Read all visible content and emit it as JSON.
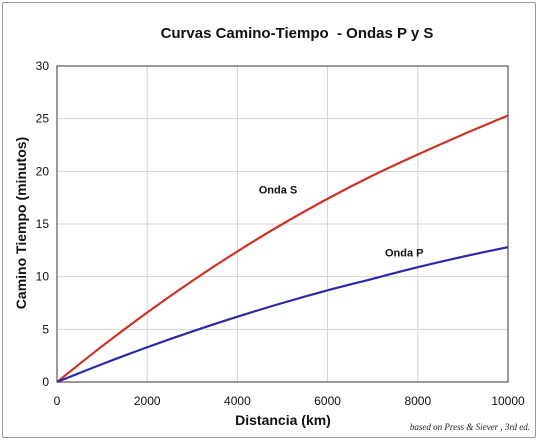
{
  "chart_data": {
    "type": "line",
    "title": "Curvas Camino-Tiempo  - Ondas P y S",
    "xlabel": "Distancia (km)",
    "ylabel": "Camino Tiempo (minutos)",
    "xlim": [
      0,
      10000
    ],
    "ylim": [
      0,
      30
    ],
    "xticks": [
      0,
      2000,
      4000,
      6000,
      8000,
      10000
    ],
    "yticks": [
      0,
      5,
      10,
      15,
      20,
      25,
      30
    ],
    "grid": true,
    "series": [
      {
        "name": "Onda S",
        "color": "#cc3322",
        "x": [
          0,
          1000,
          2000,
          3000,
          4000,
          5000,
          6000,
          7000,
          8000,
          9000,
          10000
        ],
        "values": [
          0,
          3.4,
          6.6,
          9.6,
          12.4,
          15.0,
          17.4,
          19.6,
          21.6,
          23.5,
          25.3
        ]
      },
      {
        "name": "Onda P",
        "color": "#2a2aa8",
        "x": [
          0,
          1000,
          2000,
          3000,
          4000,
          5000,
          6000,
          7000,
          8000,
          9000,
          10000
        ],
        "values": [
          0,
          1.7,
          3.3,
          4.8,
          6.2,
          7.5,
          8.7,
          9.8,
          10.9,
          11.9,
          12.8
        ]
      }
    ],
    "annotations": [
      {
        "text": "Onda S",
        "x": 4900,
        "y": 17.9
      },
      {
        "text": "Onda P",
        "x": 7700,
        "y": 11.9
      }
    ],
    "credit": "based on Press & Siever , 3rd ed."
  }
}
